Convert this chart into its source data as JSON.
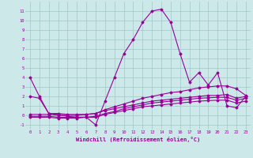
{
  "background_color": "#cce8e8",
  "grid_color": "#aacccc",
  "line_color": "#990099",
  "xlabel": "Windchill (Refroidissement éolien,°C)",
  "xlim": [
    -0.5,
    23.5
  ],
  "ylim": [
    -1.5,
    12.0
  ],
  "yticks": [
    -1,
    0,
    1,
    2,
    3,
    4,
    5,
    6,
    7,
    8,
    9,
    10,
    11
  ],
  "xticks": [
    0,
    1,
    2,
    3,
    4,
    5,
    6,
    7,
    8,
    9,
    10,
    11,
    12,
    13,
    14,
    15,
    16,
    17,
    18,
    19,
    20,
    21,
    22,
    23
  ],
  "series": [
    [
      4.0,
      2.0,
      0.2,
      0.1,
      -0.1,
      -0.2,
      -0.2,
      -1.0,
      1.5,
      4.0,
      6.5,
      8.0,
      9.8,
      11.0,
      11.2,
      9.8,
      6.5,
      3.5,
      4.5,
      3.2,
      4.5,
      1.0,
      0.8,
      2.0
    ],
    [
      2.0,
      1.8,
      0.2,
      0.2,
      0.1,
      0.1,
      0.1,
      0.2,
      0.6,
      0.9,
      1.2,
      1.5,
      1.8,
      2.0,
      2.2,
      2.4,
      2.5,
      2.7,
      2.9,
      3.0,
      3.1,
      3.1,
      2.8,
      2.1
    ],
    [
      0.1,
      0.1,
      0.1,
      0.0,
      0.0,
      0.0,
      0.1,
      0.2,
      0.5,
      0.7,
      0.9,
      1.1,
      1.3,
      1.5,
      1.6,
      1.7,
      1.8,
      1.9,
      2.0,
      2.1,
      2.1,
      2.2,
      1.8,
      2.0
    ],
    [
      -0.1,
      -0.1,
      -0.1,
      -0.2,
      -0.2,
      -0.2,
      -0.2,
      -0.1,
      0.2,
      0.4,
      0.7,
      0.9,
      1.1,
      1.3,
      1.4,
      1.5,
      1.6,
      1.7,
      1.8,
      1.85,
      1.9,
      1.9,
      1.6,
      1.8
    ],
    [
      -0.2,
      -0.2,
      -0.2,
      -0.3,
      -0.3,
      -0.3,
      -0.2,
      -0.2,
      0.1,
      0.3,
      0.5,
      0.7,
      0.9,
      1.0,
      1.1,
      1.2,
      1.3,
      1.4,
      1.5,
      1.55,
      1.6,
      1.6,
      1.3,
      1.5
    ]
  ]
}
